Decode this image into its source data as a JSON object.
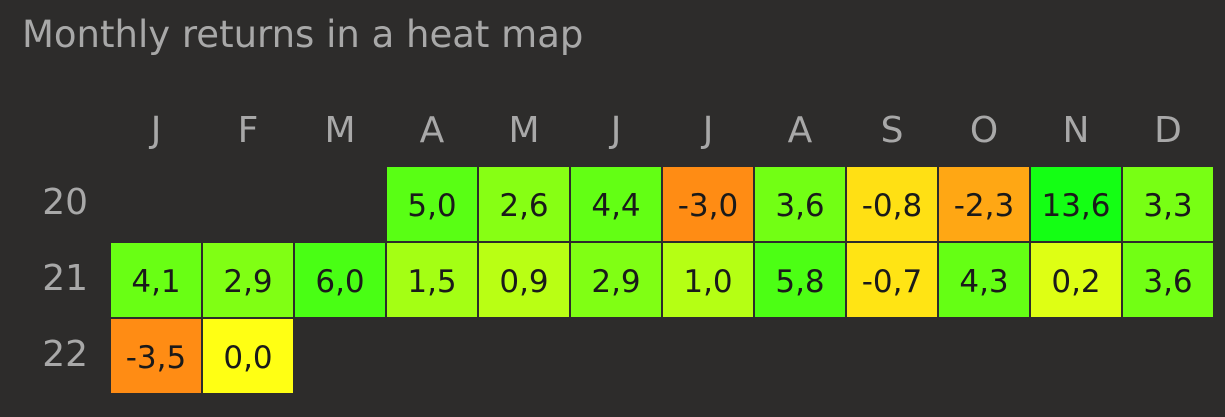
{
  "title": "Monthly returns in a heat map",
  "chart_data": {
    "type": "heatmap",
    "title": "Monthly returns in a heat map",
    "columns": [
      "J",
      "F",
      "M",
      "A",
      "M",
      "J",
      "J",
      "A",
      "S",
      "O",
      "N",
      "D"
    ],
    "rows": [
      "20",
      "21",
      "22"
    ],
    "values": [
      [
        null,
        null,
        null,
        5.0,
        2.6,
        4.4,
        -3.0,
        3.6,
        -0.8,
        -2.3,
        13.6,
        3.3
      ],
      [
        4.1,
        2.9,
        6.0,
        1.5,
        0.9,
        2.9,
        1.0,
        5.8,
        -0.7,
        4.3,
        0.2,
        3.6
      ],
      [
        -3.5,
        0.0,
        null,
        null,
        null,
        null,
        null,
        null,
        null,
        null,
        null,
        null
      ]
    ],
    "labels": [
      [
        null,
        null,
        null,
        "5,0",
        "2,6",
        "4,4",
        "-3,0",
        "3,6",
        "-0,8",
        "-2,3",
        "13,6",
        "3,3"
      ],
      [
        "4,1",
        "2,9",
        "6,0",
        "1,5",
        "0,9",
        "2,9",
        "1,0",
        "5,8",
        "-0,7",
        "4,3",
        "0,2",
        "3,6"
      ],
      [
        "-3,5",
        "0,0",
        null,
        null,
        null,
        null,
        null,
        null,
        null,
        null,
        null,
        null
      ]
    ],
    "colors": {
      "background": "#2d2c2b",
      "header_text": "#a8a8a8",
      "cell_text": "#1a1a1a",
      "scale_negative": "#ff8c14",
      "scale_zero": "#ffff14",
      "scale_positive": "#14ff14"
    }
  }
}
